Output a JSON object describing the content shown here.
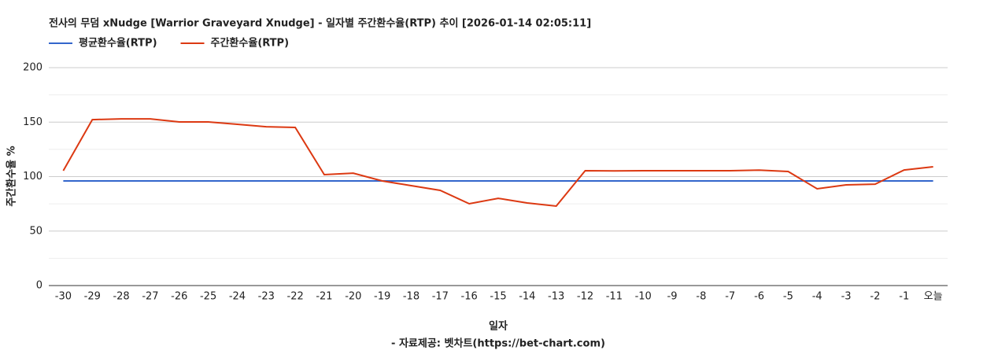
{
  "chart_data": {
    "type": "line",
    "title": "전사의 무덤 xNudge [Warrior Graveyard Xnudge] - 일자별 주간환수율(RTP) 추이 [2026-01-14 02:05:11]",
    "x_label": "일자",
    "y_label": "주간환수율 %",
    "footer": "- 자료제공: 벳차트(https://bet-chart.com)",
    "categories": [
      "-30",
      "-29",
      "-28",
      "-27",
      "-26",
      "-25",
      "-24",
      "-23",
      "-22",
      "-21",
      "-20",
      "-19",
      "-18",
      "-17",
      "-16",
      "-15",
      "-14",
      "-13",
      "-12",
      "-11",
      "-10",
      "-9",
      "-8",
      "-7",
      "-6",
      "-5",
      "-4",
      "-3",
      "-2",
      "-1",
      "오늘"
    ],
    "series": [
      {
        "name": "평균환수율(RTP)",
        "color": "#3366cc",
        "values": [
          96,
          96,
          96,
          96,
          96,
          96,
          96,
          96,
          96,
          96,
          96,
          96,
          96,
          96,
          96,
          96,
          96,
          96,
          96,
          96,
          96,
          96,
          96,
          96,
          96,
          96,
          96,
          96,
          96,
          96,
          96
        ]
      },
      {
        "name": "주간환수율(RTP)",
        "color": "#dc3912",
        "values": [
          105.4,
          152.3,
          153,
          153,
          150.2,
          150.2,
          148,
          145.8,
          145.1,
          101.8,
          103.2,
          96,
          91.7,
          87.4,
          75.1,
          80.1,
          75.8,
          72.9,
          105.4,
          105.2,
          105.4,
          105.4,
          105.4,
          105.4,
          106,
          104.7,
          88.8,
          92.4,
          93.1,
          106.1,
          109
        ]
      }
    ],
    "ylim": [
      0,
      200
    ],
    "yticks": [
      0,
      50,
      100,
      150,
      200
    ],
    "grid": true,
    "minor_grid": true,
    "legend": "top-left"
  }
}
